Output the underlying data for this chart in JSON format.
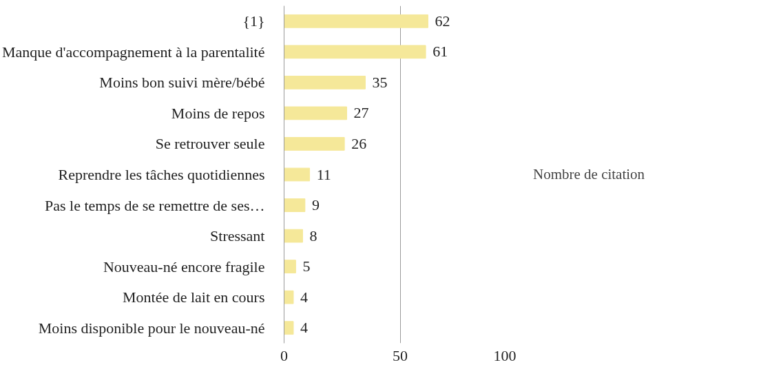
{
  "chart_data": {
    "type": "bar",
    "orientation": "horizontal",
    "categories": [
      "{1}",
      "Manque d'accompagnement à la parentalité",
      "Moins bon suivi mère/bébé",
      "Moins de repos",
      "Se retrouver seule",
      "Reprendre les tâches quotidiennes",
      "Pas le temps de se remettre de ses…",
      "Stressant",
      "Nouveau-né encore fragile",
      "Montée de lait en cours",
      "Moins disponible pour le nouveau-né"
    ],
    "series": [
      {
        "name": "Nombre de citation",
        "color": "#f5e899",
        "values": [
          62,
          61,
          35,
          27,
          26,
          11,
          9,
          8,
          5,
          4,
          4
        ]
      }
    ],
    "xlim": [
      0,
      100
    ],
    "xticks": [
      0,
      50,
      100
    ],
    "grid": "x",
    "legend": "right",
    "data_labels": true
  }
}
